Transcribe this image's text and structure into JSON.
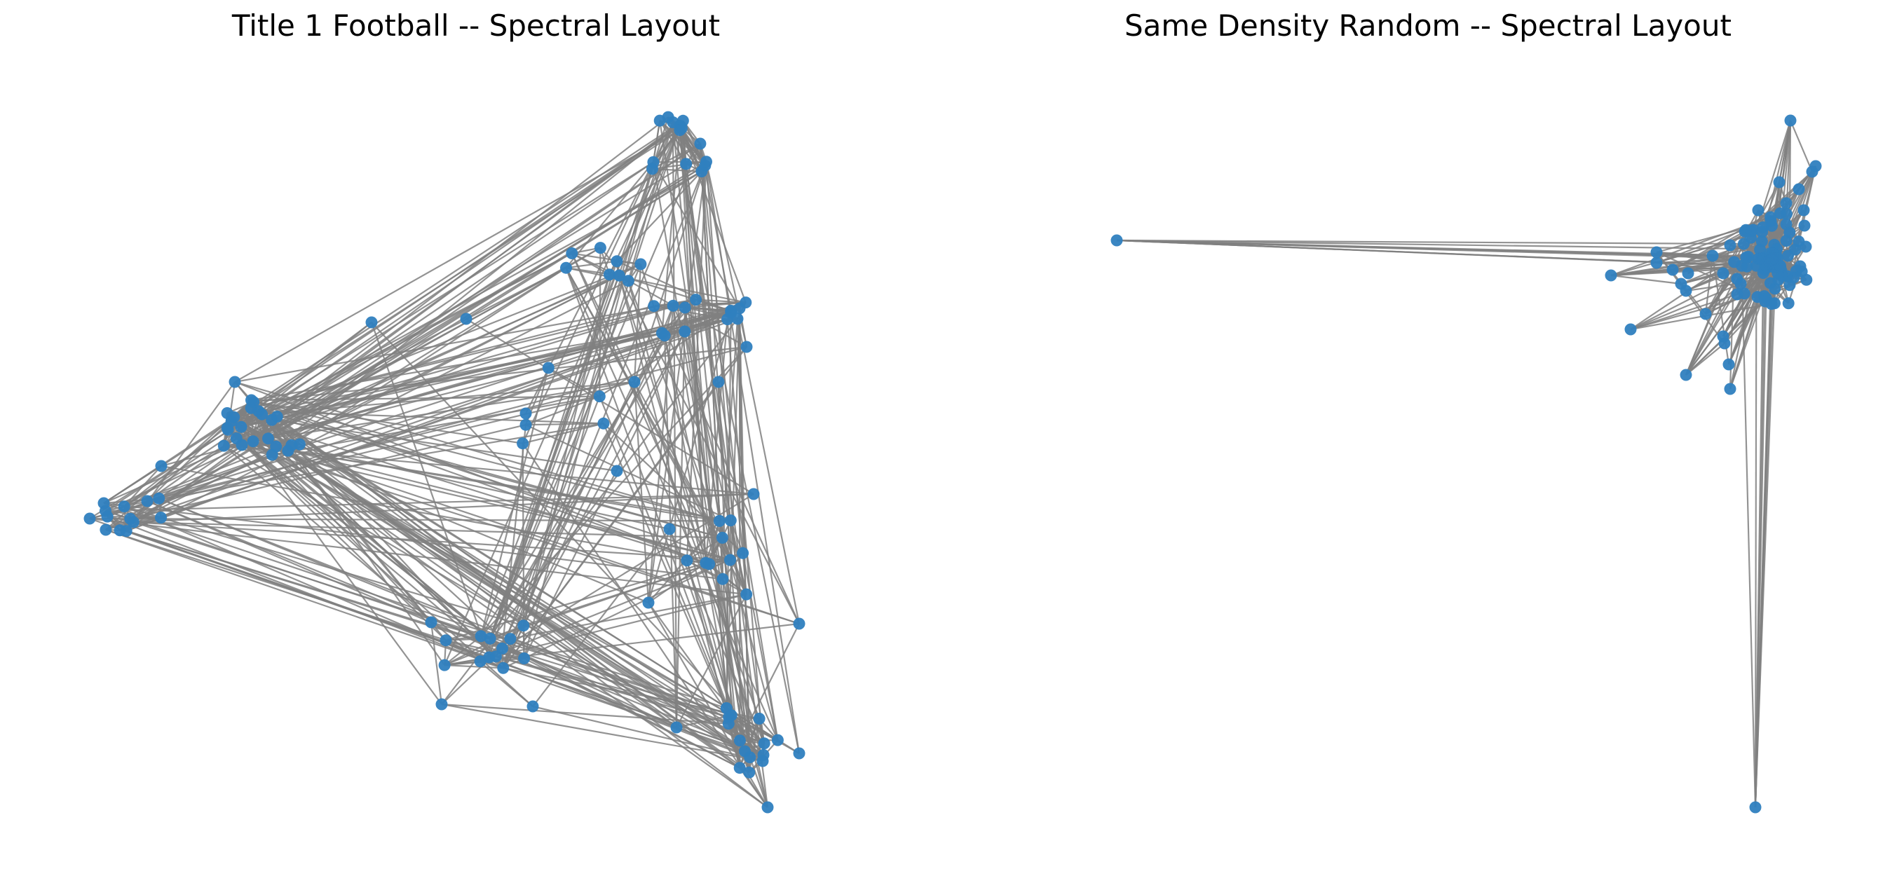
{
  "figure": {
    "panels": [
      {
        "title": "Title 1 Football -- Spectral Layout",
        "node_count": 115
      },
      {
        "title": "Same Density Random -- Spectral Layout",
        "node_count": 115
      }
    ]
  },
  "style": {
    "node_color": "#2f7fbf",
    "edge_color": "#808080",
    "background": "#ffffff"
  }
}
